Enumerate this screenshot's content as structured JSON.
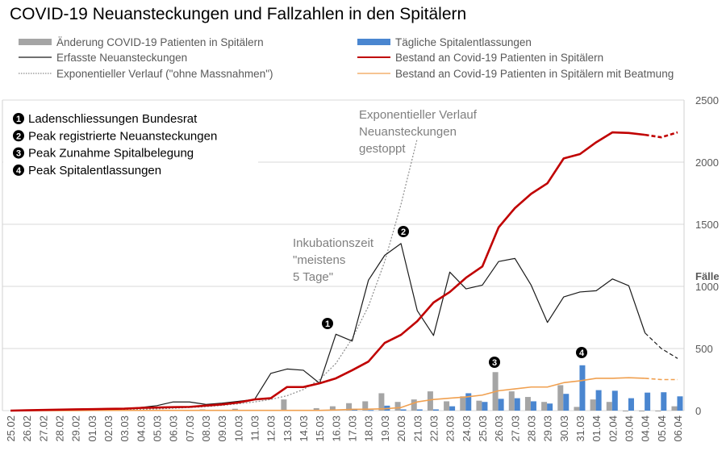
{
  "chart_data": {
    "type": "bar+line",
    "title": "COVID-19 Neuansteckungen und Fallzahlen in den Spitälern",
    "ylabel": "Fälle",
    "ylim": [
      0,
      2500
    ],
    "yticks": [
      "0",
      "500",
      "1000",
      "1500",
      "2000",
      "2500"
    ],
    "y_axis_side": "right",
    "grid": true,
    "legend_position": "top",
    "categories": [
      "25.02",
      "26.02",
      "27.02",
      "28.02",
      "29.02",
      "01.03",
      "02.03",
      "03.03",
      "04.03",
      "05.03",
      "06.03",
      "07.03",
      "08.03",
      "09.03",
      "10.03",
      "11.03",
      "12.03",
      "13.03",
      "14.03",
      "15.03",
      "16.03",
      "17.03",
      "18.03",
      "19.03",
      "20.03",
      "21.03",
      "22.03",
      "23.03",
      "24.03",
      "25.03",
      "26.03",
      "27.03",
      "28.03",
      "29.03",
      "30.03",
      "31.03",
      "01.04",
      "02.04",
      "03.04",
      "04.04",
      "05.04",
      "06.04"
    ],
    "series": [
      {
        "name": "Änderung COVID-19 Patienten in Spitälern",
        "kind": "bar",
        "color": "#a5a5a5",
        "values": [
          0,
          0,
          0,
          0,
          0,
          0,
          0,
          0,
          0,
          0,
          0,
          3,
          10,
          5,
          15,
          0,
          0,
          90,
          0,
          20,
          35,
          60,
          75,
          140,
          70,
          90,
          155,
          75,
          115,
          80,
          310,
          155,
          110,
          70,
          205,
          30,
          90,
          70,
          -5,
          -3,
          -5,
          35
        ]
      },
      {
        "name": "Tägliche Spitalentlassungen",
        "kind": "bar",
        "color": "#4a86d0",
        "values": [
          0,
          0,
          0,
          0,
          0,
          0,
          0,
          0,
          0,
          0,
          0,
          0,
          0,
          0,
          0,
          0,
          0,
          0,
          0,
          0,
          0,
          15,
          5,
          40,
          10,
          10,
          10,
          35,
          140,
          70,
          95,
          100,
          75,
          57,
          135,
          365,
          165,
          160,
          100,
          145,
          148,
          115
        ]
      },
      {
        "name": "Erfasste Neuansteckungen",
        "kind": "line",
        "color": "#1a1a1a",
        "dashed_after": "04.04",
        "values": [
          0,
          3,
          5,
          8,
          10,
          12,
          14,
          16,
          25,
          40,
          70,
          70,
          50,
          60,
          75,
          90,
          300,
          335,
          325,
          220,
          615,
          560,
          1050,
          1250,
          1345,
          805,
          605,
          1115,
          980,
          1010,
          1200,
          1225,
          1010,
          710,
          915,
          955,
          965,
          1060,
          1005,
          625,
          500,
          420
        ]
      },
      {
        "name": "Bestand an Covid-19 Patienten in Spitälern",
        "kind": "line",
        "color": "#c00000",
        "dashed_after": "04.04",
        "values": [
          0,
          3,
          5,
          8,
          10,
          12,
          14,
          16,
          22,
          25,
          28,
          30,
          40,
          50,
          65,
          90,
          100,
          190,
          190,
          220,
          260,
          325,
          395,
          545,
          610,
          720,
          870,
          955,
          1070,
          1160,
          1475,
          1630,
          1745,
          1830,
          2030,
          2065,
          2160,
          2240,
          2235,
          2220,
          2200,
          2240
        ]
      },
      {
        "name": "Exponentieller Verlauf (\"ohne Massnahmen\")",
        "kind": "line",
        "color": "#8c8c8c",
        "style": "dotted",
        "values": [
          1,
          1,
          2,
          2,
          3,
          4,
          5,
          7,
          10,
          14,
          19,
          25,
          32,
          42,
          55,
          70,
          90,
          120,
          170,
          250,
          380,
          580,
          840,
          1200,
          1660,
          2190,
          null,
          null,
          null,
          null,
          null,
          null,
          null,
          null,
          null,
          null,
          null,
          null,
          null,
          null,
          null,
          null
        ]
      },
      {
        "name": "Bestand an Covid-19 Patienten in Spitälern mit Beatmung",
        "kind": "line",
        "color": "#f0a050",
        "dashed_after": "04.04",
        "values": [
          0,
          0,
          0,
          0,
          0,
          2,
          2,
          2,
          2,
          2,
          2,
          2,
          2,
          2,
          2,
          2,
          2,
          2,
          2,
          2,
          5,
          10,
          12,
          15,
          25,
          70,
          90,
          100,
          110,
          125,
          160,
          175,
          190,
          190,
          225,
          240,
          260,
          260,
          265,
          260,
          250,
          250
        ]
      }
    ],
    "annotations": {
      "markers": [
        {
          "num": "1",
          "at": "16.03",
          "label": "Ladenschliessungen Bundesrat"
        },
        {
          "num": "2",
          "at": "20.03",
          "label": "Peak registrierte Neuansteckungen"
        },
        {
          "num": "3",
          "at": "26.03",
          "label": "Peak Zunahme Spitalbelegung"
        },
        {
          "num": "4",
          "at": "31.03",
          "label": "Peak Spitalentlassungen"
        }
      ],
      "incubation": [
        "Inkubationszeit",
        "\"meistens",
        "5 Tage\""
      ],
      "exponential_stop": [
        "Exponentieller Verlauf",
        "Neuansteckungen",
        "gestoppt"
      ]
    }
  }
}
